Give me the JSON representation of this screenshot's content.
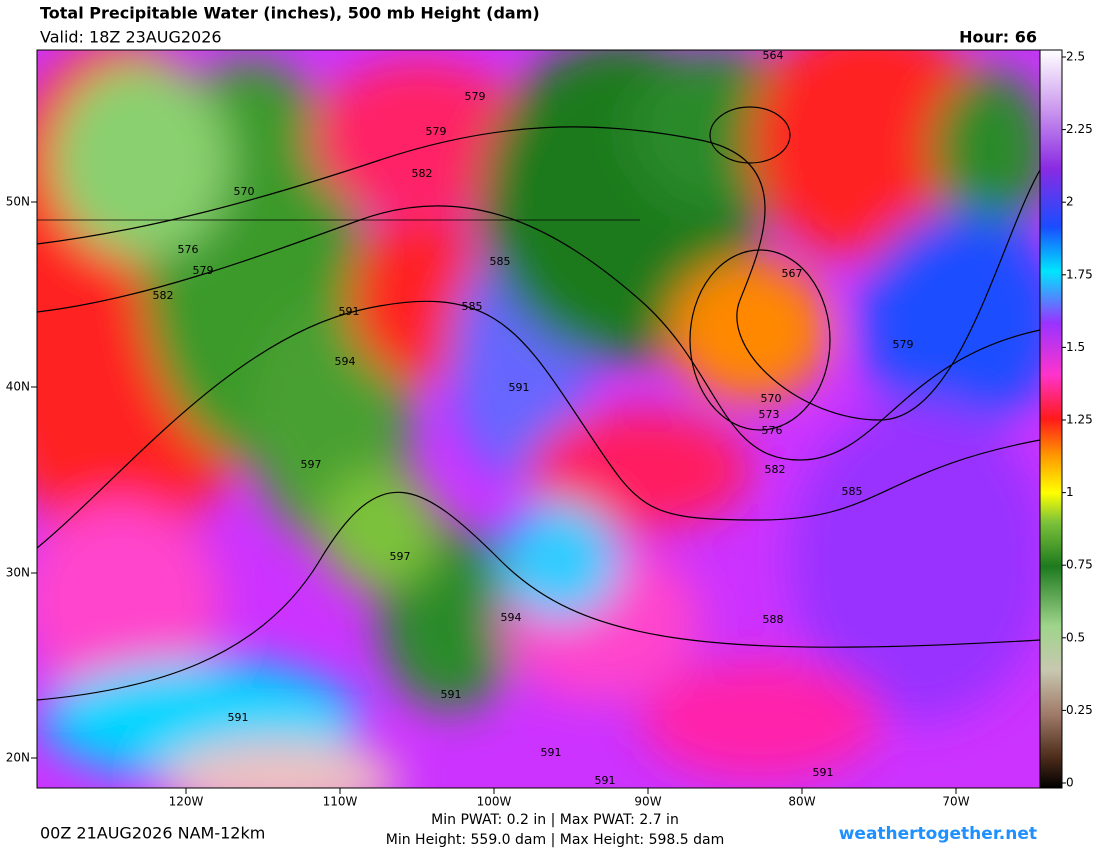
{
  "header": {
    "title": "Total Precipitable Water (inches), 500 mb Height (dam)",
    "valid": "Valid: 18Z 23AUG2026",
    "hour": "Hour: 66"
  },
  "map": {
    "lat_labels": [
      "50N",
      "40N",
      "30N",
      "20N"
    ],
    "lon_labels": [
      "120W",
      "110W",
      "100W",
      "90W",
      "80W",
      "70W"
    ],
    "contour_labels": [
      "564",
      "579",
      "579",
      "582",
      "570",
      "576",
      "579",
      "582",
      "585",
      "585",
      "591",
      "594",
      "591",
      "597",
      "567",
      "570",
      "573",
      "576",
      "582",
      "585",
      "579",
      "597",
      "594",
      "588",
      "591",
      "591",
      "591",
      "591",
      "591"
    ]
  },
  "colorbar": {
    "ticks": [
      0,
      0.25,
      0.5,
      0.75,
      1,
      1.25,
      1.5,
      1.75,
      2,
      2.25,
      2.5
    ]
  },
  "footer": {
    "run": "00Z 21AUG2026 NAM-12km",
    "pwat": "Min PWAT:   0.2 in | Max PWAT:   2.7 in",
    "height": "Min Height: 559.0 dam | Max Height: 598.5 dam",
    "site": "weathertogether.net"
  }
}
